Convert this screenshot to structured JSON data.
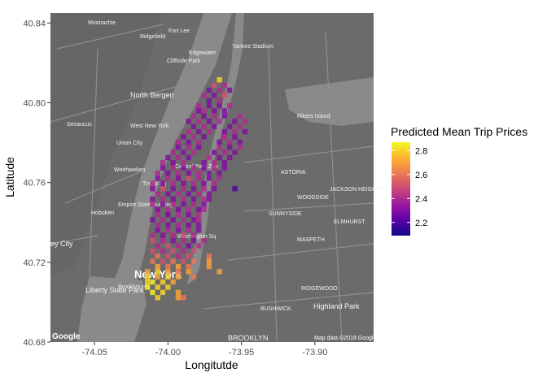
{
  "chart_data": {
    "type": "heatmap",
    "title": "",
    "xlabel": "Longitutde",
    "ylabel": "Latitude",
    "xlim": [
      -74.08,
      -73.86
    ],
    "ylim": [
      40.68,
      40.845
    ],
    "x_ticks": [
      -74.05,
      -74.0,
      -73.95,
      -73.9
    ],
    "x_tick_labels": [
      "-74.05",
      "-74.00",
      "-73.95",
      "-73.90"
    ],
    "y_ticks": [
      40.68,
      40.72,
      40.76,
      40.8,
      40.84
    ],
    "y_tick_labels": [
      "40.68",
      "40.72",
      "40.76",
      "40.80",
      "40.84"
    ],
    "grid": false,
    "background": "map",
    "colorbar": {
      "title": "Predicted Mean Trip Prices",
      "min": 2.09,
      "max": 2.87,
      "ticks": [
        2.2,
        2.4,
        2.6,
        2.8
      ],
      "tick_labels": [
        "2.2",
        "2.4",
        "2.6",
        "2.8"
      ],
      "colors": [
        "#0d0887",
        "#5c01a6",
        "#9c179e",
        "#cc4778",
        "#ed7953",
        "#fdb42f",
        "#f0f921"
      ],
      "placement": "right"
    },
    "cell_size": [
      0.0035,
      0.0026
    ],
    "cells": [
      [
        -73.965,
        40.8115,
        2.8
      ],
      [
        -73.9685,
        40.8089,
        2.5
      ],
      [
        -73.9615,
        40.8089,
        2.4
      ],
      [
        -73.972,
        40.8063,
        2.3
      ],
      [
        -73.965,
        40.8063,
        2.4
      ],
      [
        -73.958,
        40.8063,
        2.3
      ],
      [
        -73.9755,
        40.8037,
        2.4
      ],
      [
        -73.9685,
        40.8037,
        2.3
      ],
      [
        -73.9615,
        40.8037,
        2.5
      ],
      [
        -73.972,
        40.8011,
        2.3
      ],
      [
        -73.965,
        40.8011,
        2.4
      ],
      [
        -73.979,
        40.7985,
        2.4
      ],
      [
        -73.972,
        40.7985,
        2.3
      ],
      [
        -73.965,
        40.7985,
        2.3
      ],
      [
        -73.958,
        40.7985,
        2.4
      ],
      [
        -73.979,
        40.7959,
        2.3
      ],
      [
        -73.9755,
        40.7959,
        2.4
      ],
      [
        -73.9685,
        40.7959,
        2.3
      ],
      [
        -73.9615,
        40.7959,
        2.3
      ],
      [
        -73.9825,
        40.7933,
        2.4
      ],
      [
        -73.9755,
        40.7933,
        2.3
      ],
      [
        -73.9685,
        40.7933,
        2.4
      ],
      [
        -73.9615,
        40.7933,
        2.3
      ],
      [
        -73.951,
        40.7933,
        2.4
      ],
      [
        -73.986,
        40.7907,
        2.3
      ],
      [
        -73.979,
        40.7907,
        2.4
      ],
      [
        -73.972,
        40.7907,
        2.3
      ],
      [
        -73.965,
        40.7907,
        2.4
      ],
      [
        -73.9545,
        40.7907,
        2.3
      ],
      [
        -73.9475,
        40.7907,
        2.4
      ],
      [
        -73.9825,
        40.7881,
        2.3
      ],
      [
        -73.9755,
        40.7881,
        2.4
      ],
      [
        -73.9685,
        40.7881,
        2.3
      ],
      [
        -73.958,
        40.7881,
        2.3
      ],
      [
        -73.951,
        40.7881,
        2.4
      ],
      [
        -73.986,
        40.7855,
        2.4
      ],
      [
        -73.979,
        40.7855,
        2.3
      ],
      [
        -73.972,
        40.7855,
        2.4
      ],
      [
        -73.9615,
        40.7855,
        2.3
      ],
      [
        -73.9545,
        40.7855,
        2.4
      ],
      [
        -73.9475,
        40.7855,
        2.3
      ],
      [
        -73.9895,
        40.7829,
        2.3
      ],
      [
        -73.9825,
        40.7829,
        2.4
      ],
      [
        -73.9755,
        40.7829,
        2.3
      ],
      [
        -73.9615,
        40.7829,
        2.4
      ],
      [
        -73.9545,
        40.7829,
        2.3
      ],
      [
        -73.993,
        40.7803,
        2.4
      ],
      [
        -73.986,
        40.7803,
        2.3
      ],
      [
        -73.979,
        40.7803,
        2.4
      ],
      [
        -73.965,
        40.7803,
        2.3
      ],
      [
        -73.958,
        40.7803,
        2.4
      ],
      [
        -73.951,
        40.7803,
        2.3
      ],
      [
        -73.993,
        40.7777,
        2.3
      ],
      [
        -73.986,
        40.7777,
        2.4
      ],
      [
        -73.979,
        40.7777,
        2.3
      ],
      [
        -73.965,
        40.7777,
        2.4
      ],
      [
        -73.958,
        40.7777,
        2.3
      ],
      [
        -73.951,
        40.7777,
        2.4
      ],
      [
        -73.9965,
        40.7751,
        2.4
      ],
      [
        -73.9895,
        40.7751,
        2.3
      ],
      [
        -73.9825,
        40.7751,
        2.4
      ],
      [
        -73.9685,
        40.7751,
        2.3
      ],
      [
        -73.9615,
        40.7751,
        2.4
      ],
      [
        -73.9545,
        40.7751,
        2.3
      ],
      [
        -74.0,
        40.7725,
        2.3
      ],
      [
        -73.993,
        40.7725,
        2.4
      ],
      [
        -73.986,
        40.7725,
        2.3
      ],
      [
        -73.972,
        40.7725,
        2.4
      ],
      [
        -73.965,
        40.7725,
        2.3
      ],
      [
        -73.958,
        40.7725,
        2.3
      ],
      [
        -74.0035,
        40.7699,
        2.4
      ],
      [
        -73.9965,
        40.7699,
        2.3
      ],
      [
        -73.9895,
        40.7699,
        2.4
      ],
      [
        -73.9755,
        40.7699,
        2.3
      ],
      [
        -73.9685,
        40.7699,
        2.4
      ],
      [
        -73.9615,
        40.7699,
        2.3
      ],
      [
        -74.0035,
        40.7673,
        2.3
      ],
      [
        -73.9965,
        40.7673,
        2.4
      ],
      [
        -73.9895,
        40.7673,
        2.3
      ],
      [
        -73.9825,
        40.7673,
        2.4
      ],
      [
        -73.9755,
        40.7673,
        2.3
      ],
      [
        -73.9685,
        40.7673,
        2.4
      ],
      [
        -73.9615,
        40.7673,
        2.3
      ],
      [
        -74.007,
        40.7647,
        2.4
      ],
      [
        -74.0,
        40.7647,
        2.3
      ],
      [
        -73.993,
        40.7647,
        2.4
      ],
      [
        -73.986,
        40.7647,
        2.3
      ],
      [
        -73.979,
        40.7647,
        2.4
      ],
      [
        -73.972,
        40.7647,
        2.3
      ],
      [
        -73.965,
        40.7647,
        2.3
      ],
      [
        -74.007,
        40.7621,
        2.3
      ],
      [
        -74.0,
        40.7621,
        2.4
      ],
      [
        -73.993,
        40.7621,
        2.3
      ],
      [
        -73.986,
        40.7621,
        2.5
      ],
      [
        -73.979,
        40.7621,
        2.4
      ],
      [
        -73.972,
        40.7621,
        2.3
      ],
      [
        -73.965,
        40.7621,
        2.4
      ],
      [
        -74.0105,
        40.7595,
        2.4
      ],
      [
        -74.0035,
        40.7595,
        2.3
      ],
      [
        -73.9965,
        40.7595,
        2.4
      ],
      [
        -73.9895,
        40.7595,
        2.3
      ],
      [
        -73.9825,
        40.7595,
        2.4
      ],
      [
        -73.9755,
        40.7595,
        2.3
      ],
      [
        -73.9685,
        40.7595,
        2.4
      ],
      [
        -74.0105,
        40.7569,
        2.3
      ],
      [
        -74.0035,
        40.7569,
        2.5
      ],
      [
        -73.9965,
        40.7569,
        2.3
      ],
      [
        -73.9895,
        40.7569,
        2.4
      ],
      [
        -73.9825,
        40.7569,
        2.3
      ],
      [
        -73.9755,
        40.7569,
        2.4
      ],
      [
        -73.9685,
        40.7569,
        2.3
      ],
      [
        -73.9545,
        40.7569,
        2.2
      ],
      [
        -74.007,
        40.7543,
        2.4
      ],
      [
        -74.0,
        40.7543,
        2.3
      ],
      [
        -73.993,
        40.7543,
        2.4
      ],
      [
        -73.986,
        40.7543,
        2.3
      ],
      [
        -73.979,
        40.7543,
        2.4
      ],
      [
        -73.972,
        40.7543,
        2.3
      ],
      [
        -74.0105,
        40.7517,
        2.3
      ],
      [
        -74.0035,
        40.7517,
        2.4
      ],
      [
        -73.9965,
        40.7517,
        2.3
      ],
      [
        -73.9895,
        40.7517,
        2.4
      ],
      [
        -73.9825,
        40.7517,
        2.3
      ],
      [
        -73.9755,
        40.7517,
        2.4
      ],
      [
        -73.972,
        40.7517,
        2.3
      ],
      [
        -74.0105,
        40.7491,
        2.4
      ],
      [
        -74.0035,
        40.7491,
        2.3
      ],
      [
        -73.9965,
        40.7491,
        2.4
      ],
      [
        -73.9895,
        40.7491,
        2.3
      ],
      [
        -73.9825,
        40.7491,
        2.4
      ],
      [
        -73.9755,
        40.7491,
        2.3
      ],
      [
        -74.007,
        40.7465,
        2.3
      ],
      [
        -74.0,
        40.7465,
        2.4
      ],
      [
        -73.993,
        40.7465,
        2.3
      ],
      [
        -73.986,
        40.7465,
        2.4
      ],
      [
        -73.979,
        40.7465,
        2.3
      ],
      [
        -73.9755,
        40.7465,
        2.4
      ],
      [
        -74.007,
        40.7439,
        2.4
      ],
      [
        -74.0,
        40.7439,
        2.3
      ],
      [
        -73.993,
        40.7439,
        2.4
      ],
      [
        -73.986,
        40.7439,
        2.3
      ],
      [
        -73.979,
        40.7439,
        2.4
      ],
      [
        -74.0105,
        40.7413,
        2.3
      ],
      [
        -74.0035,
        40.7413,
        2.4
      ],
      [
        -73.9965,
        40.7413,
        2.3
      ],
      [
        -73.9895,
        40.7413,
        2.4
      ],
      [
        -73.9825,
        40.7413,
        2.3
      ],
      [
        -73.979,
        40.7413,
        2.4
      ],
      [
        -74.007,
        40.7387,
        2.4
      ],
      [
        -74.0,
        40.7387,
        2.3
      ],
      [
        -73.993,
        40.7387,
        2.4
      ],
      [
        -73.986,
        40.7387,
        2.3
      ],
      [
        -73.979,
        40.7387,
        2.3
      ],
      [
        -74.007,
        40.7361,
        2.3
      ],
      [
        -74.0,
        40.7361,
        2.4
      ],
      [
        -73.993,
        40.7361,
        2.3
      ],
      [
        -73.986,
        40.7361,
        2.4
      ],
      [
        -73.979,
        40.7361,
        2.3
      ],
      [
        -74.0105,
        40.7335,
        2.4
      ],
      [
        -74.0035,
        40.7335,
        2.3
      ],
      [
        -73.9965,
        40.7335,
        2.4
      ],
      [
        -73.9895,
        40.7335,
        2.5
      ],
      [
        -73.9825,
        40.7335,
        2.4
      ],
      [
        -74.0105,
        40.7309,
        2.5
      ],
      [
        -74.0035,
        40.7309,
        2.4
      ],
      [
        -73.9965,
        40.7309,
        2.3
      ],
      [
        -73.9895,
        40.7309,
        2.4
      ],
      [
        -73.9825,
        40.7309,
        2.3
      ],
      [
        -73.9755,
        40.7309,
        2.4
      ],
      [
        -74.007,
        40.7283,
        2.4
      ],
      [
        -74.0,
        40.7283,
        2.5
      ],
      [
        -73.993,
        40.7283,
        2.4
      ],
      [
        -73.986,
        40.7283,
        2.3
      ],
      [
        -73.979,
        40.7283,
        2.4
      ],
      [
        -74.0105,
        40.7257,
        2.5
      ],
      [
        -74.0035,
        40.7257,
        2.4
      ],
      [
        -73.9965,
        40.7257,
        2.5
      ],
      [
        -73.9895,
        40.7257,
        2.4
      ],
      [
        -73.9825,
        40.7257,
        2.5
      ],
      [
        -74.007,
        40.7231,
        2.6
      ],
      [
        -74.0,
        40.7231,
        2.5
      ],
      [
        -73.993,
        40.7231,
        2.4
      ],
      [
        -73.986,
        40.7231,
        2.5
      ],
      [
        -73.972,
        40.7231,
        2.6
      ],
      [
        -74.0105,
        40.7205,
        2.6
      ],
      [
        -74.0035,
        40.7205,
        2.5
      ],
      [
        -73.9965,
        40.7205,
        2.6
      ],
      [
        -73.9895,
        40.7205,
        2.5
      ],
      [
        -73.9825,
        40.7205,
        2.6
      ],
      [
        -73.972,
        40.7205,
        2.7
      ],
      [
        -74.007,
        40.7179,
        2.7
      ],
      [
        -74.0,
        40.7179,
        2.6
      ],
      [
        -73.993,
        40.7179,
        2.7
      ],
      [
        -73.986,
        40.7179,
        2.6
      ],
      [
        -73.972,
        40.7179,
        2.7
      ],
      [
        -74.014,
        40.7153,
        2.7
      ],
      [
        -74.007,
        40.7153,
        2.8
      ],
      [
        -74.0,
        40.7153,
        2.7
      ],
      [
        -73.993,
        40.7153,
        2.6
      ],
      [
        -73.986,
        40.7153,
        2.7
      ],
      [
        -73.965,
        40.7153,
        2.7
      ],
      [
        -74.014,
        40.7127,
        2.8
      ],
      [
        -74.007,
        40.7127,
        2.7
      ],
      [
        -74.0,
        40.7127,
        2.8
      ],
      [
        -73.993,
        40.7127,
        2.7
      ],
      [
        -73.9825,
        40.7127,
        2.6
      ],
      [
        -74.014,
        40.7101,
        2.8
      ],
      [
        -74.0105,
        40.7101,
        2.85
      ],
      [
        -74.0035,
        40.7101,
        2.8
      ],
      [
        -73.9965,
        40.7101,
        2.7
      ],
      [
        -74.014,
        40.7075,
        2.85
      ],
      [
        -74.007,
        40.7075,
        2.8
      ],
      [
        -74.0,
        40.7075,
        2.8
      ],
      [
        -74.0105,
        40.7049,
        2.85
      ],
      [
        -74.0035,
        40.7049,
        2.8
      ],
      [
        -73.993,
        40.7049,
        2.7
      ],
      [
        -74.007,
        40.7023,
        2.8
      ],
      [
        -73.993,
        40.7023,
        2.7
      ],
      [
        -73.9895,
        40.7023,
        2.6
      ]
    ]
  },
  "map_labels": {
    "moonachie": "Moonachie",
    "ridgefield": "Ridgefield",
    "fort_lee": "Fort Lee",
    "edgewater": "Edgewater",
    "cliffside_park": "Cliffside Park",
    "yankee_stadium": "Yankee Stadium",
    "north_bergen": "North Bergen",
    "secaucus": "Secaucus",
    "west_new_york": "West New York",
    "union_city": "Union City",
    "weehawken": "Weehawken",
    "central_park": "Central Park Zoo",
    "times_square": "Times Sq",
    "empire_state": "Empire State Building",
    "hoboken": "Hoboken",
    "jersey_city": "ey City",
    "washington_sq": "Washington Sq",
    "new_york": "New York",
    "brooklyn_heights": "Brooklyn Hts",
    "liberty_state_park": "Liberty State Park",
    "astoria": "ASTORIA",
    "jackson_heights": "JACKSON HEIGHTS",
    "woodside": "WOODSIDE",
    "sunnyside": "SUNNYSIDE",
    "maspeth": "MASPETH",
    "elmhurst": "ELMHURST",
    "ridgewood": "RIDGEWOOD",
    "bushwick": "BUSHWICK",
    "highland_park": "Highland Park",
    "rikers_island": "Rikers Island",
    "brooklyn": "BROOKLYN",
    "google": "Google",
    "attribution": "Map data ©2018 Google"
  }
}
